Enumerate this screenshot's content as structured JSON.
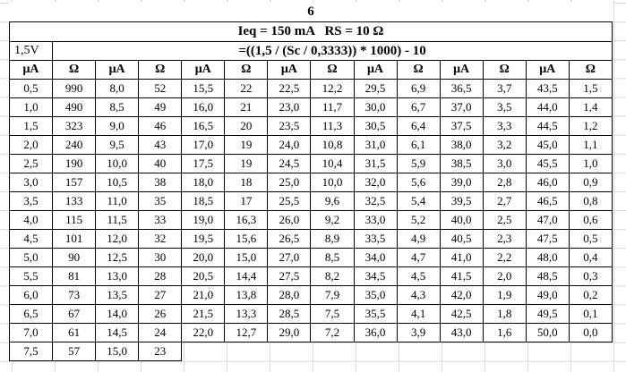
{
  "sheet": {
    "title": "6",
    "subtitle": "Ieq = 150 mA   RS = 10 Ω",
    "voltage_label": "1,5V",
    "formula": "=((1,5 / (Sc / 0,3333)) * 1000) - 10",
    "column_headers": [
      "μA",
      "Ω",
      "μA",
      "Ω",
      "μA",
      "Ω",
      "μA",
      "Ω",
      "μA",
      "Ω",
      "μA",
      "Ω",
      "μA",
      "Ω"
    ],
    "rows": [
      [
        "0,5",
        "990",
        "8,0",
        "52",
        "15,5",
        "22",
        "22,5",
        "12,2",
        "29,5",
        "6,9",
        "36,5",
        "3,7",
        "43,5",
        "1,5"
      ],
      [
        "1,0",
        "490",
        "8,5",
        "49",
        "16,0",
        "21",
        "23,0",
        "11,7",
        "30,0",
        "6,7",
        "37,0",
        "3,5",
        "44,0",
        "1,4"
      ],
      [
        "1,5",
        "323",
        "9,0",
        "46",
        "16,5",
        "20",
        "23,5",
        "11,3",
        "30,5",
        "6,4",
        "37,5",
        "3,3",
        "44,5",
        "1,2"
      ],
      [
        "2,0",
        "240",
        "9,5",
        "43",
        "17,0",
        "19",
        "24,0",
        "10,8",
        "31,0",
        "6,1",
        "38,0",
        "3,2",
        "45,0",
        "1,1"
      ],
      [
        "2,5",
        "190",
        "10,0",
        "40",
        "17,5",
        "19",
        "24,5",
        "10,4",
        "31,5",
        "5,9",
        "38,5",
        "3,0",
        "45,5",
        "1,0"
      ],
      [
        "3,0",
        "157",
        "10,5",
        "38",
        "18,0",
        "18",
        "25,0",
        "10,0",
        "32,0",
        "5,6",
        "39,0",
        "2,8",
        "46,0",
        "0,9"
      ],
      [
        "3,5",
        "133",
        "11,0",
        "35",
        "18,5",
        "17",
        "25,5",
        "9,6",
        "32,5",
        "5,4",
        "39,5",
        "2,7",
        "46,5",
        "0,8"
      ],
      [
        "4,0",
        "115",
        "11,5",
        "33",
        "19,0",
        "16,3",
        "26,0",
        "9,2",
        "33,0",
        "5,2",
        "40,0",
        "2,5",
        "47,0",
        "0,6"
      ],
      [
        "4,5",
        "101",
        "12,0",
        "32",
        "19,5",
        "15,6",
        "26,5",
        "8,9",
        "33,5",
        "4,9",
        "40,5",
        "2,3",
        "47,5",
        "0,5"
      ],
      [
        "5,0",
        "90",
        "12,5",
        "30",
        "20,0",
        "15,0",
        "27,0",
        "8,5",
        "34,0",
        "4,7",
        "41,0",
        "2,2",
        "48,0",
        "0,4"
      ],
      [
        "5,5",
        "81",
        "13,0",
        "28",
        "20,5",
        "14,4",
        "27,5",
        "8,2",
        "34,5",
        "4,5",
        "41,5",
        "2,0",
        "48,5",
        "0,3"
      ],
      [
        "6,0",
        "73",
        "13,5",
        "27",
        "21,0",
        "13,8",
        "28,0",
        "7,9",
        "35,0",
        "4,3",
        "42,0",
        "1,9",
        "49,0",
        "0,2"
      ],
      [
        "6,5",
        "67",
        "14,0",
        "26",
        "21,5",
        "13,3",
        "28,5",
        "7,5",
        "35,5",
        "4,1",
        "42,5",
        "1,8",
        "49,5",
        "0,1"
      ],
      [
        "7,0",
        "61",
        "14,5",
        "24",
        "22,0",
        "12,7",
        "29,0",
        "7,2",
        "36,0",
        "3,9",
        "43,0",
        "1,6",
        "50,0",
        "0,0"
      ],
      [
        "7,5",
        "57",
        "15,0",
        "23"
      ]
    ]
  },
  "colors": {
    "table_border": "#000000",
    "gridline": "#d9d9d9",
    "text": "#000000",
    "background": "#ffffff"
  }
}
